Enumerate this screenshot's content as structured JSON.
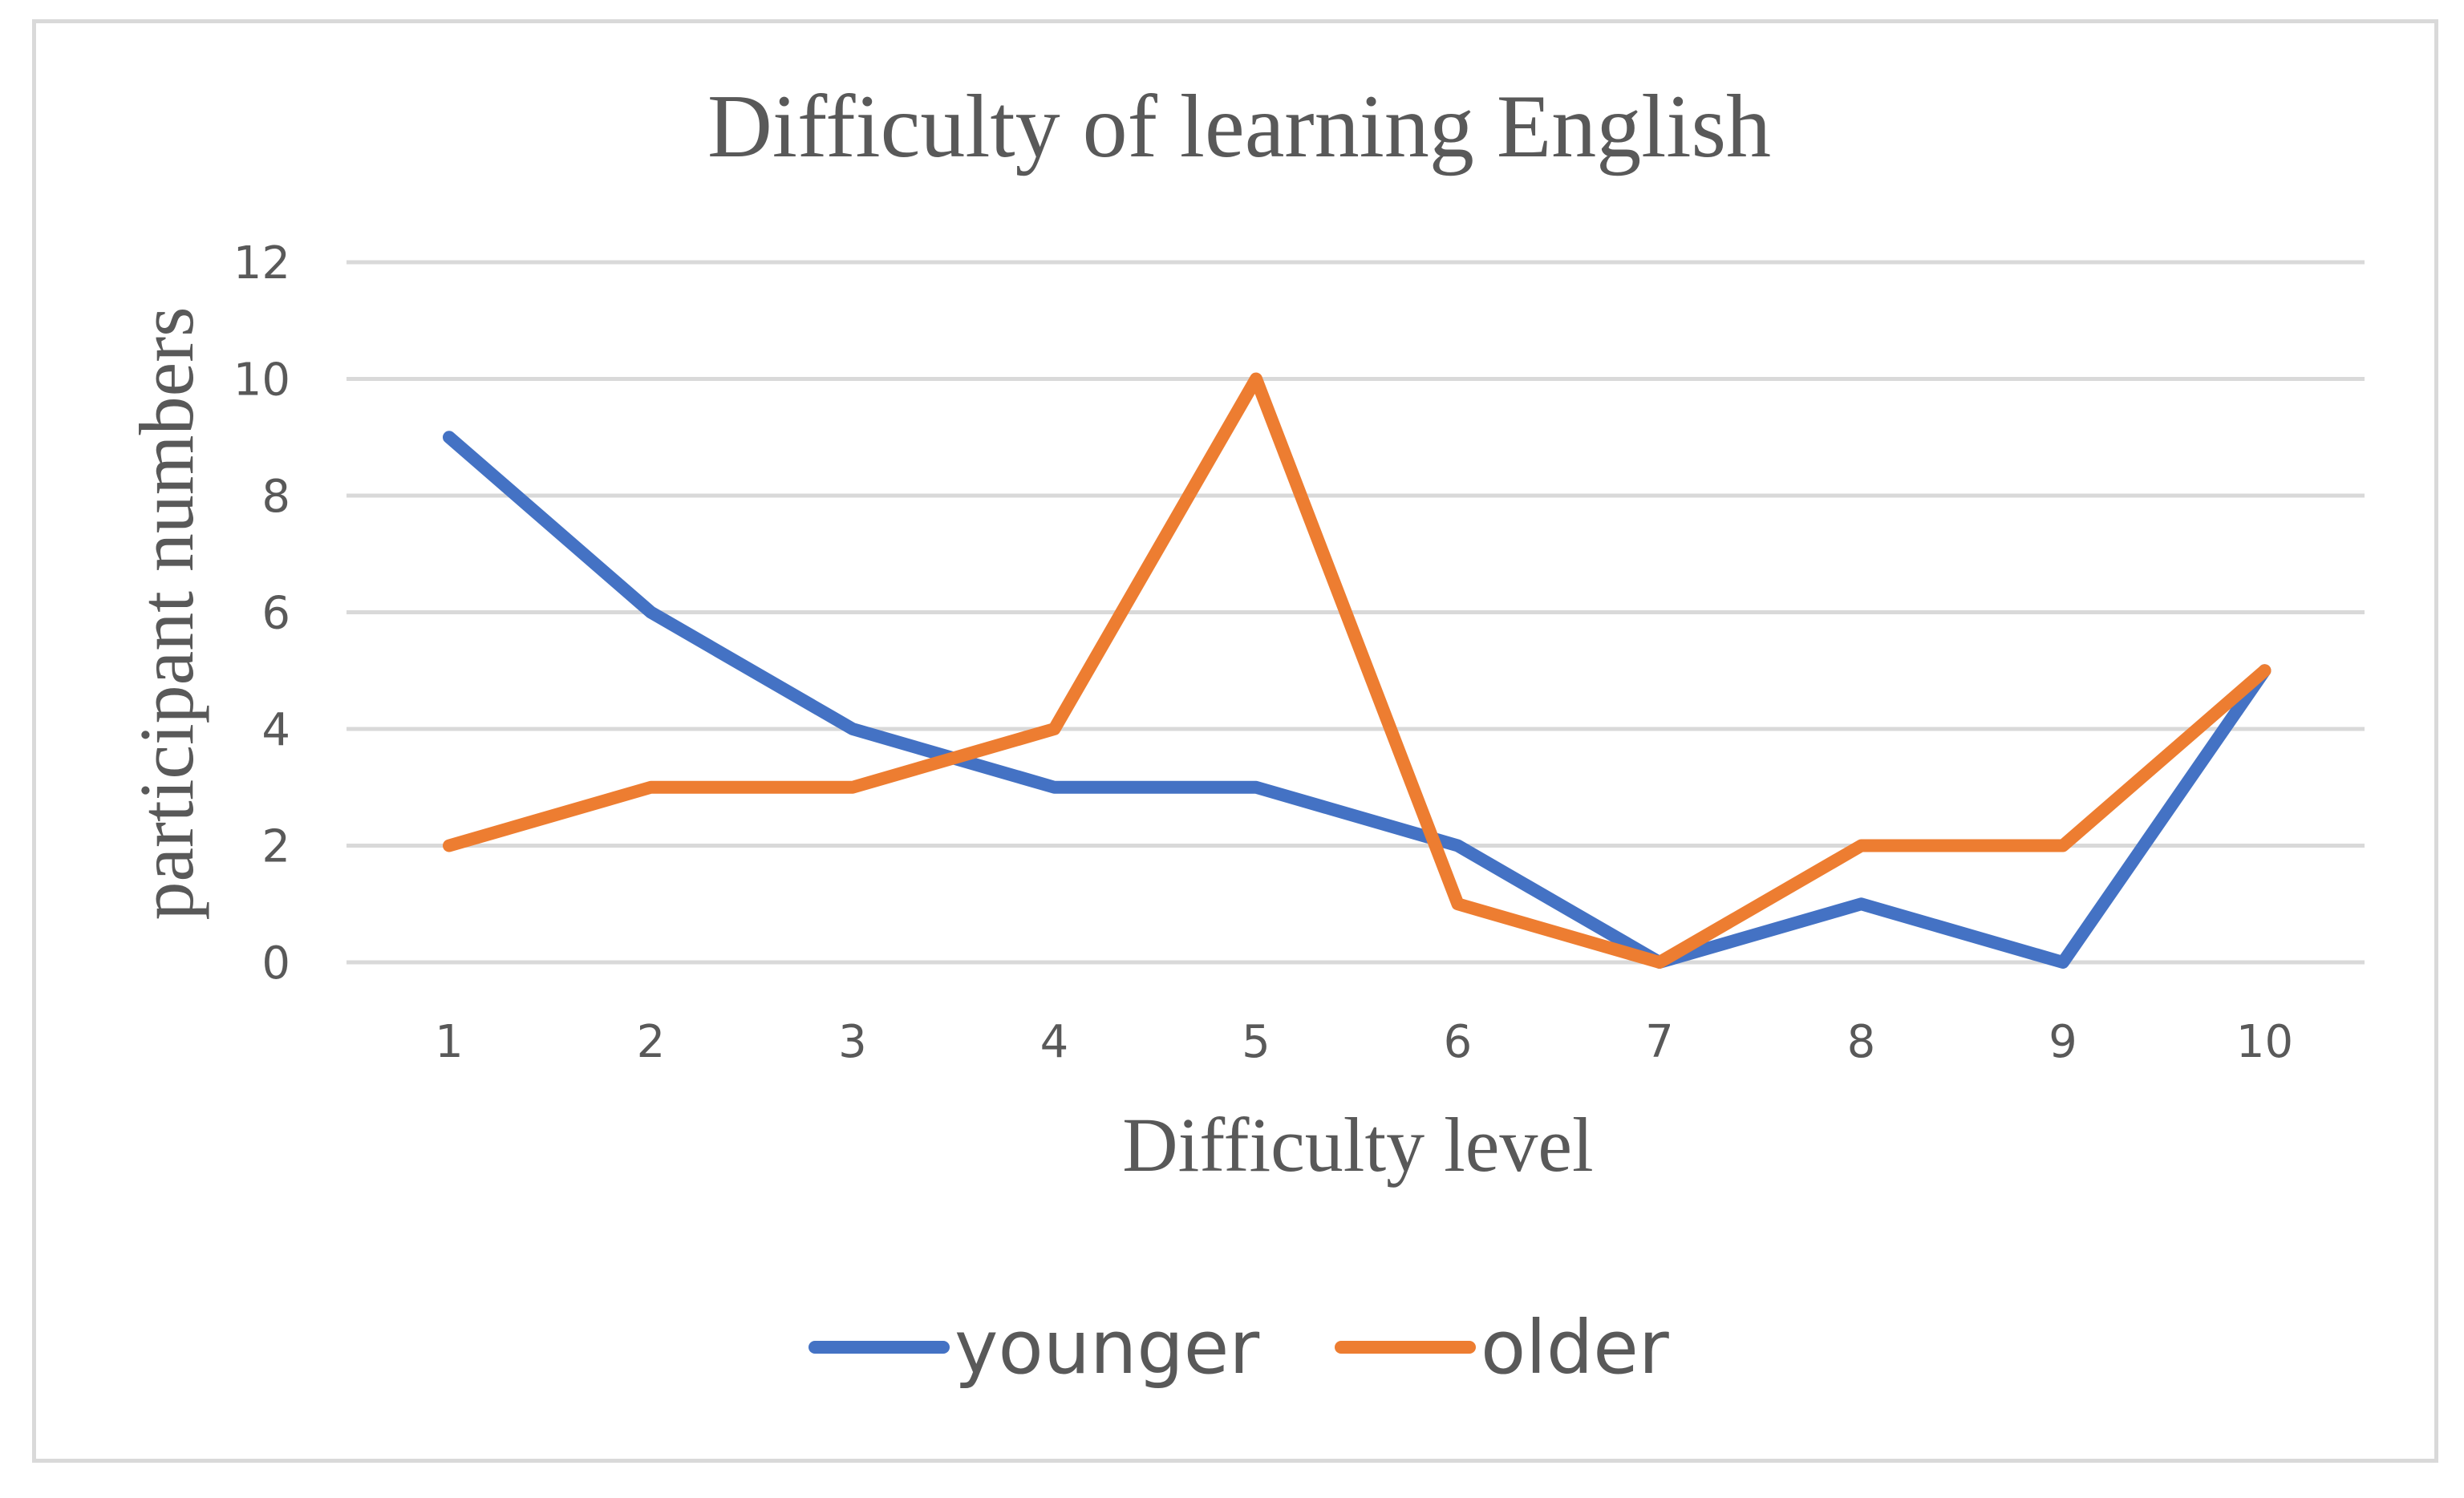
{
  "chart_data": {
    "type": "line",
    "title": "Difficulty of learning English",
    "xlabel": "Difficulty level",
    "ylabel": "participant numbers",
    "categories": [
      "1",
      "2",
      "3",
      "4",
      "5",
      "6",
      "7",
      "8",
      "9",
      "10"
    ],
    "series": [
      {
        "name": "younger",
        "color": "#4472c4",
        "values": [
          9,
          6,
          4,
          3,
          3,
          2,
          0,
          1,
          0,
          5
        ]
      },
      {
        "name": "older",
        "color": "#ed7d31",
        "values": [
          2,
          3,
          3,
          4,
          10,
          1,
          0,
          2,
          2,
          5
        ]
      }
    ],
    "ylim": [
      0,
      12
    ],
    "yticks": [
      0,
      2,
      4,
      6,
      8,
      10,
      12
    ],
    "grid": true,
    "legend_position": "bottom"
  }
}
